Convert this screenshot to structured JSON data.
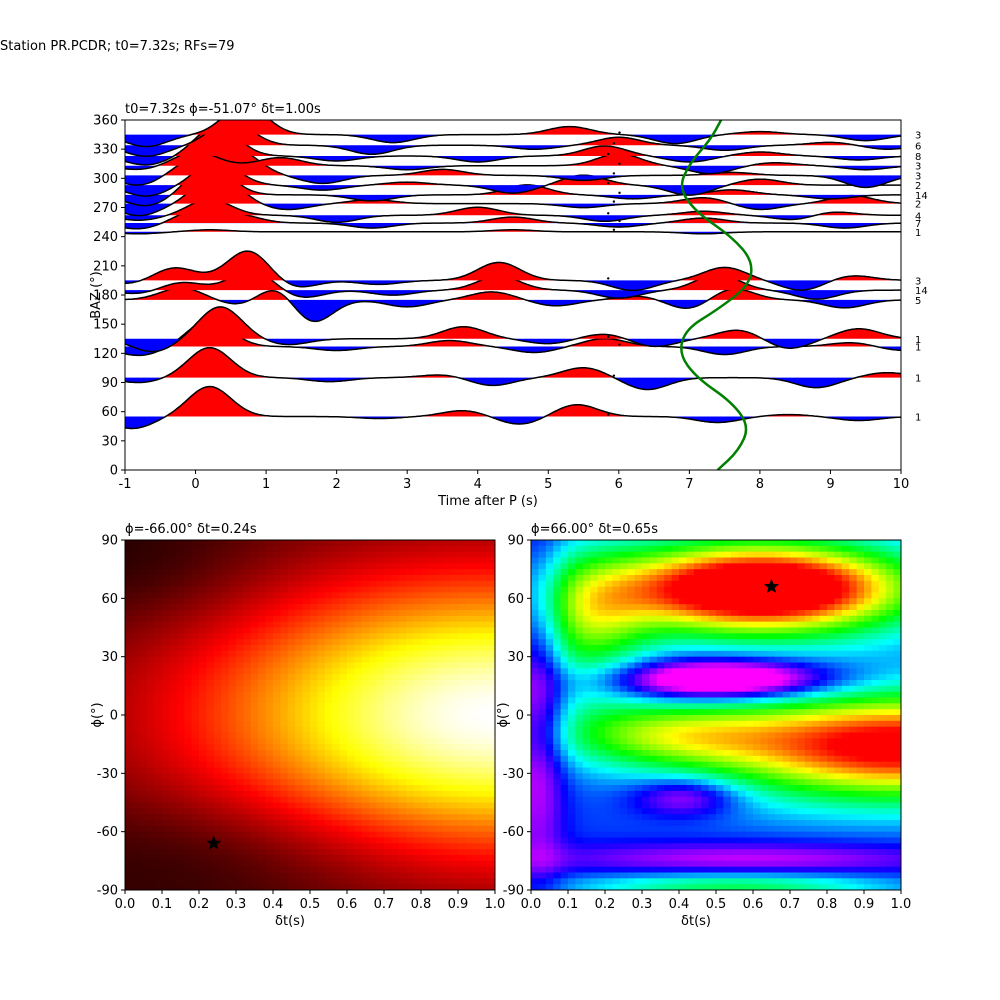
{
  "figure": {
    "suptitle": "Station PR.PCDR; t0=7.32s; RFs=79"
  },
  "chart_data": [
    {
      "type": "line",
      "subtype": "receiver-function wiggle plot",
      "title": "t0=7.32s ϕ=-51.07° δt=1.00s",
      "title_parts": {
        "t0": "t0=7.32s",
        "phi": "ϕ=-51.07°",
        "dt": "δt=1.00s"
      },
      "xlabel": "Time after P (s)",
      "ylabel": "BAZ (°)",
      "xlim": [
        -1,
        10
      ],
      "ylim": [
        0,
        360
      ],
      "xticks": [
        -1,
        0,
        1,
        2,
        3,
        4,
        5,
        6,
        7,
        8,
        9,
        10
      ],
      "yticks": [
        0,
        30,
        60,
        90,
        120,
        150,
        180,
        210,
        240,
        270,
        300,
        330,
        360
      ],
      "fill_positive": "#ff0000",
      "fill_negative": "#0000ff",
      "green_curve_color": "#008000",
      "green_curve": {
        "description": "predicted Ps-time curve vs back-azimuth",
        "points": [
          [
            7.4,
            0
          ],
          [
            7.7,
            20
          ],
          [
            7.85,
            45
          ],
          [
            7.6,
            70
          ],
          [
            7.1,
            95
          ],
          [
            6.85,
            120
          ],
          [
            6.95,
            145
          ],
          [
            7.4,
            165
          ],
          [
            7.85,
            190
          ],
          [
            7.9,
            215
          ],
          [
            7.6,
            240
          ],
          [
            7.1,
            265
          ],
          [
            6.85,
            290
          ],
          [
            7.0,
            315
          ],
          [
            7.3,
            340
          ],
          [
            7.45,
            360
          ]
        ]
      },
      "traces": [
        {
          "baz": 55,
          "count": "1",
          "peaks": [
            [
              0.2,
              30
            ],
            [
              3.8,
              6
            ],
            [
              5.4,
              12
            ],
            [
              8.4,
              2
            ]
          ],
          "troughs": [
            [
              -0.9,
              -12
            ],
            [
              2.6,
              -2
            ],
            [
              4.6,
              -8
            ],
            [
              7.4,
              -6
            ],
            [
              9.4,
              -4
            ]
          ]
        },
        {
          "baz": 95,
          "count": "1",
          "peaks": [
            [
              0.2,
              30
            ],
            [
              3.5,
              3
            ],
            [
              5.5,
              10
            ],
            [
              9.8,
              5
            ]
          ],
          "troughs": [
            [
              -0.8,
              -5
            ],
            [
              1.9,
              -4
            ],
            [
              4.2,
              -8
            ],
            [
              6.4,
              -12
            ],
            [
              8.8,
              -10
            ]
          ]
        },
        {
          "baz": 127,
          "count": "1",
          "peaks": [
            [
              0.2,
              27
            ],
            [
              3.6,
              6
            ],
            [
              5.8,
              8
            ],
            [
              9.3,
              4
            ]
          ],
          "troughs": [
            [
              -0.8,
              -9
            ],
            [
              2.0,
              -4
            ],
            [
              4.8,
              -6
            ],
            [
              7.5,
              -8
            ],
            [
              10,
              -4
            ]
          ]
        },
        {
          "baz": 135,
          "count": "1",
          "peaks": [
            [
              0.35,
              32
            ],
            [
              3.8,
              12
            ],
            [
              5.8,
              5
            ],
            [
              7.7,
              9
            ],
            [
              9.4,
              10
            ]
          ],
          "troughs": [
            [
              -0.6,
              -13
            ],
            [
              1.3,
              -6
            ],
            [
              5.0,
              -5
            ],
            [
              6.5,
              -8
            ],
            [
              8.4,
              -10
            ]
          ]
        },
        {
          "baz": 175,
          "count": "5",
          "peaks": [
            [
              -0.2,
              12
            ],
            [
              1.2,
              20
            ],
            [
              4.2,
              8
            ],
            [
              6.3,
              4
            ],
            [
              7.6,
              12
            ]
          ],
          "troughs": [
            [
              0.7,
              -7
            ],
            [
              1.6,
              -28
            ],
            [
              3.0,
              -7
            ],
            [
              5.1,
              -6
            ],
            [
              7.0,
              -10
            ],
            [
              9.2,
              -8
            ]
          ]
        },
        {
          "baz": 185,
          "count": "14",
          "peaks": [
            [
              -0.2,
              8
            ],
            [
              0.8,
              20
            ],
            [
              4.3,
              14
            ],
            [
              7.4,
              16
            ]
          ],
          "troughs": [
            [
              -0.8,
              -4
            ],
            [
              1.5,
              -8
            ],
            [
              2.8,
              -5
            ],
            [
              6.0,
              -8
            ],
            [
              8.8,
              -9
            ]
          ]
        },
        {
          "baz": 195,
          "count": "3",
          "peaks": [
            [
              -0.3,
              13
            ],
            [
              0.75,
              30
            ],
            [
              4.3,
              18
            ],
            [
              7.5,
              13
            ],
            [
              9.3,
              5
            ]
          ],
          "troughs": [
            [
              -0.9,
              -4
            ],
            [
              1.4,
              -8
            ],
            [
              2.6,
              -4
            ],
            [
              6.2,
              -10
            ],
            [
              8.6,
              -10
            ]
          ]
        },
        {
          "baz": 245,
          "count": "1",
          "peaks": [
            [
              0.2,
              2
            ],
            [
              4.5,
              2
            ]
          ],
          "troughs": [
            [
              -0.8,
              -2
            ],
            [
              7.2,
              -2
            ]
          ]
        },
        {
          "baz": 254,
          "count": "7",
          "peaks": [
            [
              0.0,
              12
            ],
            [
              0.6,
              8
            ],
            [
              4.5,
              6
            ],
            [
              7.2,
              5
            ]
          ],
          "troughs": [
            [
              -0.8,
              -6
            ],
            [
              2.5,
              -5
            ],
            [
              6.0,
              -4
            ],
            [
              9.2,
              -5
            ]
          ]
        },
        {
          "baz": 262,
          "count": "4",
          "peaks": [
            [
              0.2,
              16
            ],
            [
              4.0,
              8
            ],
            [
              7.2,
              4
            ],
            [
              9.0,
              4
            ]
          ],
          "troughs": [
            [
              -0.8,
              -5
            ],
            [
              2.0,
              -7
            ],
            [
              5.8,
              -6
            ],
            [
              8.5,
              -5
            ]
          ]
        },
        {
          "baz": 274,
          "count": "2",
          "peaks": [
            [
              0.3,
              30
            ],
            [
              2.5,
              4
            ],
            [
              7.2,
              6
            ],
            [
              9.3,
              8
            ]
          ],
          "troughs": [
            [
              -0.8,
              -12
            ],
            [
              1.3,
              -6
            ],
            [
              5.5,
              -4
            ],
            [
              8.0,
              -6
            ]
          ]
        },
        {
          "baz": 283,
          "count": "14",
          "peaks": [
            [
              0.2,
              30
            ],
            [
              4.7,
              10
            ],
            [
              7.6,
              5
            ]
          ],
          "troughs": [
            [
              -0.7,
              -11
            ],
            [
              2.5,
              -6
            ],
            [
              6.2,
              -4
            ],
            [
              9.0,
              -4
            ]
          ]
        },
        {
          "baz": 293,
          "count": "2",
          "peaks": [
            [
              0.3,
              24
            ],
            [
              3.0,
              3
            ],
            [
              5.5,
              10
            ],
            [
              8.0,
              6
            ]
          ],
          "troughs": [
            [
              -0.7,
              -11
            ],
            [
              1.8,
              -5
            ],
            [
              4.5,
              -8
            ],
            [
              7.0,
              -10
            ]
          ]
        },
        {
          "baz": 303,
          "count": "3",
          "peaks": [
            [
              0.0,
              16
            ],
            [
              0.6,
              24
            ],
            [
              3.5,
              6
            ],
            [
              7.6,
              3
            ]
          ],
          "troughs": [
            [
              -0.8,
              -10
            ],
            [
              1.8,
              -8
            ],
            [
              5.5,
              -5
            ],
            [
              9.5,
              -12
            ]
          ]
        },
        {
          "baz": 313,
          "count": "3",
          "peaks": [
            [
              0.0,
              14
            ],
            [
              1.2,
              8
            ],
            [
              6.0,
              12
            ],
            [
              8.2,
              3
            ]
          ],
          "troughs": [
            [
              -0.8,
              -4
            ],
            [
              3.0,
              -4
            ],
            [
              7.3,
              -8
            ],
            [
              9.5,
              -4
            ]
          ]
        },
        {
          "baz": 323,
          "count": "8",
          "peaks": [
            [
              0.3,
              30
            ],
            [
              5.8,
              10
            ],
            [
              8.0,
              4
            ]
          ],
          "troughs": [
            [
              -0.7,
              -9
            ],
            [
              2.0,
              -5
            ],
            [
              4.0,
              -6
            ],
            [
              7.0,
              -6
            ],
            [
              9.4,
              -4
            ]
          ]
        },
        {
          "baz": 334,
          "count": "6",
          "peaks": [
            [
              0.5,
              24
            ],
            [
              6.0,
              8
            ],
            [
              9.0,
              3
            ]
          ],
          "troughs": [
            [
              -0.7,
              -11
            ],
            [
              2.5,
              -9
            ],
            [
              4.8,
              -4
            ],
            [
              7.5,
              -5
            ],
            [
              9.8,
              -4
            ]
          ]
        },
        {
          "baz": 345,
          "count": "3",
          "peaks": [
            [
              0.7,
              30
            ],
            [
              5.3,
              8
            ],
            [
              8.0,
              3
            ]
          ],
          "troughs": [
            [
              -0.7,
              -12
            ],
            [
              2.8,
              -8
            ],
            [
              6.8,
              -9
            ],
            [
              9.5,
              -6
            ]
          ]
        }
      ]
    },
    {
      "type": "heatmap",
      "title": "ϕ=-66.00° δt=0.24s",
      "xlabel": "δt(s)",
      "ylabel": "ϕ(°)",
      "xlim": [
        0.0,
        1.0
      ],
      "ylim": [
        -90,
        90
      ],
      "xticks": [
        "0.0",
        "0.1",
        "0.2",
        "0.3",
        "0.4",
        "0.5",
        "0.6",
        "0.7",
        "0.8",
        "0.9",
        "1.0"
      ],
      "yticks": [
        -90,
        -60,
        -30,
        0,
        30,
        60,
        90
      ],
      "colormap": "hot",
      "best": {
        "dt": 0.24,
        "phi": -66
      },
      "field": {
        "center_dt": 1.0,
        "center_phi": 0,
        "sx": 0.56,
        "sy": 50,
        "ripples": [
          {
            "dt": 0.3,
            "phi": -70,
            "sx": 0.35,
            "sy": 25,
            "amp": -0.1
          },
          {
            "dt": 0.05,
            "phi": 75,
            "sx": 0.25,
            "sy": 25,
            "amp": -0.08
          }
        ]
      }
    },
    {
      "type": "heatmap",
      "title": "ϕ=66.00° δt=0.65s",
      "xlabel": "δt(s)",
      "ylabel": "ϕ(°)",
      "xlim": [
        0.0,
        1.0
      ],
      "ylim": [
        -90,
        90
      ],
      "xticks": [
        "0.0",
        "0.1",
        "0.2",
        "0.3",
        "0.4",
        "0.5",
        "0.6",
        "0.7",
        "0.8",
        "0.9",
        "1.0"
      ],
      "yticks": [
        -90,
        -60,
        -30,
        0,
        30,
        60,
        90
      ],
      "colormap": "hsv",
      "best": {
        "dt": 0.65,
        "phi": 66
      },
      "blobs": [
        {
          "dt": 0.62,
          "phi": 65,
          "sx": 0.3,
          "sy": 17,
          "amp": 1.0
        },
        {
          "dt": 1.0,
          "phi": -16,
          "sx": 0.38,
          "sy": 20,
          "amp": 0.82
        },
        {
          "dt": 0.35,
          "phi": -10,
          "sx": 0.22,
          "sy": 12,
          "amp": 0.35
        },
        {
          "dt": 0.15,
          "phi": 45,
          "sx": 0.12,
          "sy": 25,
          "amp": 0.35
        },
        {
          "dt": 0.52,
          "phi": 18,
          "sx": 0.2,
          "sy": 7,
          "amp": -0.55
        },
        {
          "dt": 0.42,
          "phi": -42,
          "sx": 0.1,
          "sy": 7,
          "amp": -0.25
        },
        {
          "dt": 0.6,
          "phi": -74,
          "sx": 0.4,
          "sy": 6,
          "amp": -0.2
        },
        {
          "dt": 0.02,
          "phi": 0,
          "sx": 0.05,
          "sy": 60,
          "amp": -0.25
        },
        {
          "dt": 0.55,
          "phi": -88,
          "sx": 0.3,
          "sy": 5,
          "amp": 0.3
        }
      ]
    }
  ]
}
